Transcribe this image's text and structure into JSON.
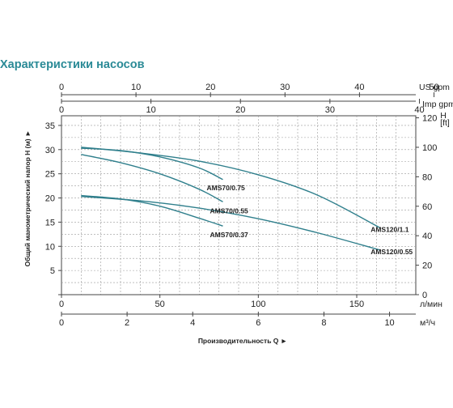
{
  "header": {
    "title": "Характеристики насосов"
  },
  "chart_data": {
    "type": "line",
    "title": "Характеристики насосов",
    "xlabel": "Производительность Q",
    "ylabel": "Общий манометрический напор H (м)",
    "grid": true,
    "x_unit_primary": "л/мин",
    "xlim": [
      0,
      180
    ],
    "ylim": [
      0,
      37
    ],
    "y_ticks": [
      0,
      5,
      10,
      15,
      20,
      25,
      30,
      35
    ],
    "x_ticks_primary": [
      0,
      50,
      100,
      150
    ],
    "axes_secondary": {
      "top_us_gpm": {
        "unit": "US gpm",
        "ticks": [
          0,
          10,
          20,
          30,
          40,
          50
        ]
      },
      "top_imp_gpm": {
        "unit": "Imp gpm",
        "ticks": [
          0,
          10,
          20,
          30,
          40
        ]
      },
      "bottom_m3h": {
        "unit": "м³/ч",
        "ticks": [
          0,
          2,
          4,
          6,
          8,
          10
        ]
      },
      "right_ft": {
        "unit_line1": "H",
        "unit_line2": "[ft]",
        "ticks": [
          0,
          20,
          40,
          60,
          80,
          100,
          120
        ]
      }
    },
    "series": [
      {
        "name": "AMS70/0.75",
        "x": [
          10,
          30,
          50,
          70,
          82
        ],
        "y": [
          30.3,
          29.8,
          28.5,
          26.2,
          23.8
        ]
      },
      {
        "name": "AMS70/0.55",
        "x": [
          10,
          30,
          50,
          70,
          82
        ],
        "y": [
          29.0,
          27.3,
          25.0,
          21.8,
          19.2
        ]
      },
      {
        "name": "AMS70/0.37",
        "x": [
          10,
          30,
          50,
          70,
          82
        ],
        "y": [
          20.5,
          19.8,
          18.3,
          15.8,
          14.2
        ]
      },
      {
        "name": "AMS120/1.1",
        "x": [
          10,
          40,
          70,
          100,
          130,
          162
        ],
        "y": [
          30.5,
          29.3,
          27.6,
          24.8,
          20.6,
          13.8
        ]
      },
      {
        "name": "AMS120/0.55",
        "x": [
          10,
          40,
          70,
          100,
          130,
          162
        ],
        "y": [
          20.3,
          19.4,
          17.9,
          15.7,
          12.8,
          9.2
        ]
      }
    ]
  }
}
